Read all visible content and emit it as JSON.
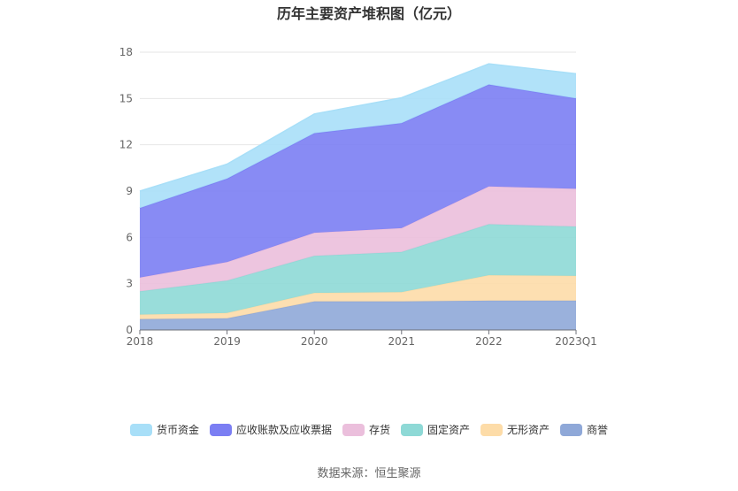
{
  "chart_data": {
    "type": "area",
    "stacked": true,
    "title": "历年主要资产堆积图（亿元）",
    "categories": [
      "2018",
      "2019",
      "2020",
      "2021",
      "2022",
      "2023Q1"
    ],
    "ylim": [
      0,
      18
    ],
    "yticks": [
      0,
      3,
      6,
      9,
      12,
      15,
      18
    ],
    "series": [
      {
        "name": "商誉",
        "color": "#8fa8d8",
        "values": [
          0.7,
          0.75,
          1.85,
          1.85,
          1.9,
          1.9
        ]
      },
      {
        "name": "无形资产",
        "color": "#fddca8",
        "values": [
          0.3,
          0.35,
          0.55,
          0.6,
          1.65,
          1.6
        ]
      },
      {
        "name": "固定资产",
        "color": "#8ed9d6",
        "values": [
          1.5,
          2.1,
          2.4,
          2.6,
          3.3,
          3.2
        ]
      },
      {
        "name": "存货",
        "color": "#ebbfdc",
        "values": [
          0.9,
          1.2,
          1.5,
          1.55,
          2.45,
          2.45
        ]
      },
      {
        "name": "应收账款及应收票据",
        "color": "#7b7ef3",
        "values": [
          4.5,
          5.4,
          6.45,
          6.8,
          6.6,
          5.85
        ]
      },
      {
        "name": "货币资金",
        "color": "#a8dff8",
        "values": [
          1.1,
          0.95,
          1.25,
          1.65,
          1.35,
          1.6
        ]
      }
    ],
    "legend_order": [
      "货币资金",
      "应收账款及应收票据",
      "存货",
      "固定资产",
      "无形资产",
      "商誉"
    ],
    "legend_position": "bottom"
  },
  "footer": {
    "source": "数据来源：恒生聚源"
  }
}
